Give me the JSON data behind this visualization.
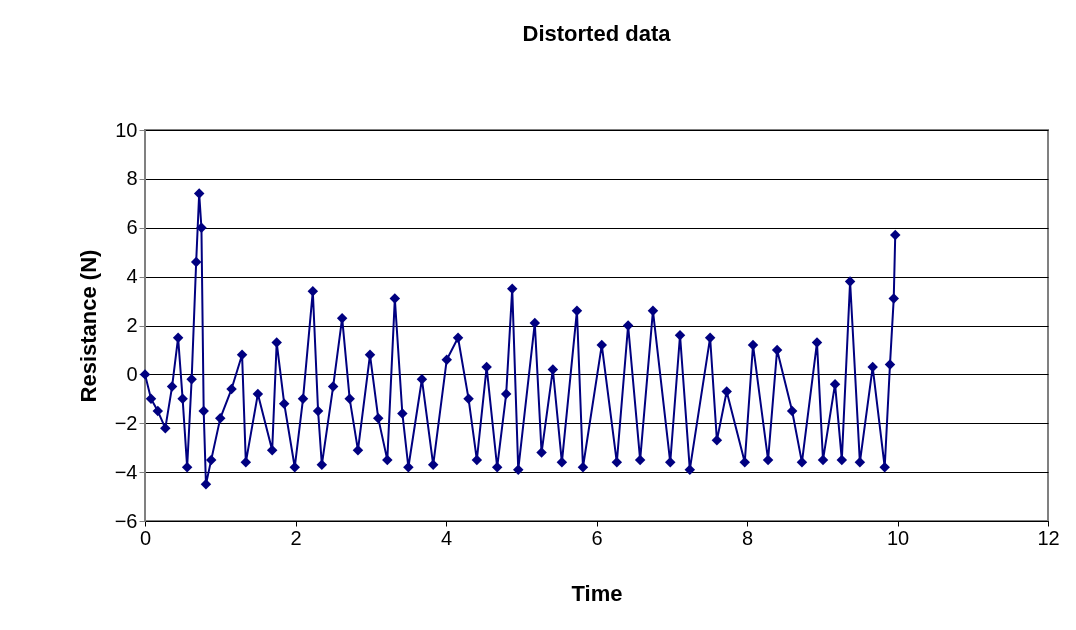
{
  "chart_data": {
    "type": "line",
    "title": "Distorted data",
    "xlabel": "Time",
    "ylabel": "Resistance (N)",
    "xlim": [
      0,
      12
    ],
    "xticks": [
      0,
      2,
      4,
      6,
      8,
      10,
      12
    ],
    "ylim": [
      -6,
      10
    ],
    "yticks": [
      -6,
      -4,
      -2,
      0,
      2,
      4,
      6,
      8,
      10
    ],
    "grid": "y",
    "marker": "diamond",
    "line_style": "solid",
    "series": [
      {
        "color": "#000080",
        "x": [
          0,
          0.08,
          0.17,
          0.27,
          0.36,
          0.44,
          0.5,
          0.56,
          0.62,
          0.68,
          0.72,
          0.75,
          0.78,
          0.81,
          0.88,
          1.0,
          1.15,
          1.29,
          1.34,
          1.5,
          1.69,
          1.75,
          1.85,
          1.99,
          2.1,
          2.23,
          2.3,
          2.35,
          2.5,
          2.62,
          2.72,
          2.83,
          2.99,
          3.1,
          3.22,
          3.32,
          3.42,
          3.5,
          3.68,
          3.83,
          4.01,
          4.16,
          4.3,
          4.41,
          4.54,
          4.68,
          4.8,
          4.88,
          4.96,
          5.18,
          5.27,
          5.42,
          5.54,
          5.74,
          5.82,
          6.07,
          6.27,
          6.42,
          6.58,
          6.75,
          6.98,
          7.11,
          7.24,
          7.51,
          7.6,
          7.73,
          7.97,
          8.08,
          8.28,
          8.4,
          8.6,
          8.73,
          8.93,
          9.01,
          9.17,
          9.26,
          9.37,
          9.5,
          9.67,
          9.83,
          9.9,
          9.95,
          9.97
        ],
        "values": [
          0,
          -1.0,
          -1.5,
          -2.2,
          -0.5,
          1.5,
          -1.0,
          -3.8,
          -0.2,
          4.6,
          7.4,
          6.0,
          -1.5,
          -4.5,
          -3.5,
          -1.8,
          -0.6,
          0.8,
          -3.6,
          -0.8,
          -3.1,
          1.3,
          -1.2,
          -3.8,
          -1.0,
          3.4,
          -1.5,
          -3.7,
          -0.5,
          2.3,
          -1.0,
          -3.1,
          0.8,
          -1.8,
          -3.5,
          3.1,
          -1.6,
          -3.8,
          -0.2,
          -3.7,
          0.6,
          1.5,
          -1.0,
          -3.5,
          0.3,
          -3.8,
          -0.8,
          3.5,
          -3.9,
          2.1,
          -3.2,
          0.2,
          -3.6,
          2.6,
          -3.8,
          1.2,
          -3.6,
          2.0,
          -3.5,
          2.6,
          -3.6,
          1.6,
          -3.9,
          1.5,
          -2.7,
          -0.7,
          -3.6,
          1.2,
          -3.5,
          1.0,
          -1.5,
          -3.6,
          1.3,
          -3.5,
          -0.4,
          -3.5,
          3.8,
          -3.6,
          0.3,
          -3.8,
          0.4,
          3.1,
          5.7
        ]
      }
    ]
  }
}
